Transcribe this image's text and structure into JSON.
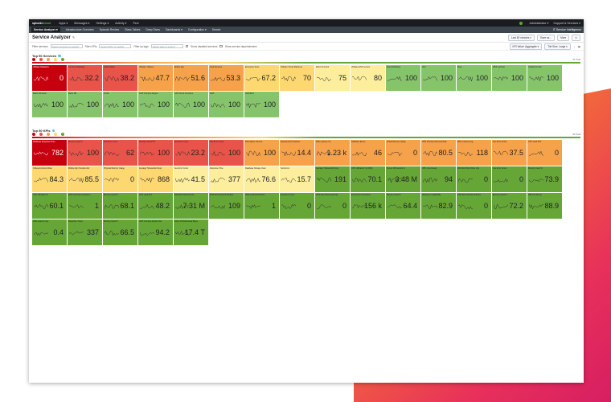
{
  "topbar": {
    "logo": "splunk>",
    "logo_suffix": "cloud",
    "menus": [
      "Apps ▾",
      "Messages ▾",
      "Settings ▾",
      "Activity ▾",
      "Find"
    ],
    "user": "Administrator ▾",
    "support": "Support & Services ▾"
  },
  "appbar": {
    "nav": [
      "Service Analyzer ▾",
      "Infrastructure Overview",
      "Episode Review",
      "Glass Tables",
      "Deep Dives",
      "Dashboards ▾",
      "Configuration ▾",
      "Search"
    ],
    "brand": "IT Service Intelligence"
  },
  "page": {
    "title": "Service Analyzer",
    "time_range": "Last 60 minutes ▾",
    "save": "Save as...",
    "more": "More"
  },
  "filters": {
    "filter_services_label": "Filter services",
    "filter_services_placeholder": "Select services or search",
    "filter_kpis_label": "Filter KPIs",
    "filter_kpis_placeholder": "Select KPIs or search",
    "filter_tags_label": "Filter by tags",
    "filter_tags_placeholder": "Select tags or search",
    "show_disabled": "Show disabled services",
    "show_dependencies": "Show service dependencies",
    "aggregate": "KPI Value: Aggregate ▾",
    "size": "Tile Size: Large ▾"
  },
  "services": {
    "title": "Top 50 Services",
    "count": "22 Total",
    "tiles": [
      {
        "name": "VMware Datastore",
        "value": "0",
        "sev": "critical"
      },
      {
        "name": "On-Prem Database",
        "value": "32.2",
        "sev": "high"
      },
      {
        "name": "Authorization",
        "value": "38.2",
        "sev": "high"
      },
      {
        "name": "VMware vSphere",
        "value": "47.7",
        "sev": "medium"
      },
      {
        "name": "Mobile App",
        "value": "51.6",
        "sev": "medium"
      },
      {
        "name": "Card Services",
        "value": "53.3",
        "sev": "medium"
      },
      {
        "name": "Enterprise Store",
        "value": "67.2",
        "sev": "low"
      },
      {
        "name": "VMware Virtual Machines",
        "value": "70",
        "sev": "low"
      },
      {
        "name": "Web Front End",
        "value": "75",
        "sev": "info-s"
      },
      {
        "name": "VMware ESXi servers",
        "value": "80",
        "sev": "info-s"
      },
      {
        "name": "Cloud Database",
        "value": "100",
        "sev": "normal2"
      },
      {
        "name": "SLO",
        "value": "100",
        "sev": "normal2"
      },
      {
        "name": "Store",
        "value": "100",
        "sev": "normal2"
      },
      {
        "name": "AWS Lambda",
        "value": "100",
        "sev": "normal2"
      },
      {
        "name": "Catalog Service",
        "value": "100",
        "sev": "normal2"
      },
      {
        "name": "Batch Schedule",
        "value": "100",
        "sev": "normal2"
      },
      {
        "name": "Batch RB",
        "value": "100",
        "sev": "normal2"
      },
      {
        "name": "Portal",
        "value": "100",
        "sev": "normal2"
      },
      {
        "name": "GCP Compute Engine",
        "value": "100",
        "sev": "normal2"
      },
      {
        "name": "GCP Cloud Functions",
        "value": "100",
        "sev": "normal2"
      },
      {
        "name": "AWS",
        "value": "100",
        "sev": "normal2"
      },
      {
        "name": "AWS EC2",
        "value": "100",
        "sev": "normal2"
      }
    ]
  },
  "kpis": {
    "title": "Top 50 KPIs",
    "count": "90 Total",
    "tiles": [
      {
        "name": "Database Response Time",
        "value": "782",
        "sev": "critical"
      },
      {
        "name": "Memory Used %",
        "value": "100",
        "sev": "high"
      },
      {
        "name": "Sev Error Count",
        "value": "62",
        "sev": "high"
      },
      {
        "name": "Storage Used PCT",
        "value": "100",
        "sev": "high"
      },
      {
        "name": "Sev Error Count",
        "value": "23.2",
        "sev": "high"
      },
      {
        "name": "Sev Error Count",
        "value": "100",
        "sev": "high"
      },
      {
        "name": "Disk Space Used %",
        "value": "100",
        "sev": "medium"
      },
      {
        "name": "Network Error Packets",
        "value": "14.4",
        "sev": "medium"
      },
      {
        "name": "Write Latency ms",
        "value": "1.23 k",
        "sev": "medium"
      },
      {
        "name": "Database Errors",
        "value": "46",
        "sev": "medium"
      },
      {
        "name": "Virtual Memory Usage",
        "value": "0",
        "sev": "medium"
      },
      {
        "name": "VMS Checked Success Rate",
        "value": "80.5",
        "sev": "medium"
      },
      {
        "name": "Write Latency Avg",
        "value": "118",
        "sev": "medium"
      },
      {
        "name": "Sev Error Count",
        "value": "37.5",
        "sev": "medium"
      },
      {
        "name": "CPU Load PCT",
        "value": "0",
        "sev": "medium"
      },
      {
        "name": "Ordered Account Rate",
        "value": "84.3",
        "sev": "low"
      },
      {
        "name": "Mobile App Checkout Err",
        "value": "85.5",
        "sev": "low"
      },
      {
        "name": "Physical Memory Usage",
        "value": "0",
        "sev": "low"
      },
      {
        "name": "Average Transaction Resp",
        "value": "868",
        "sev": "low"
      },
      {
        "name": "Sev Error Count",
        "value": "41.5",
        "sev": "info-s"
      },
      {
        "name": "Response Time",
        "value": "377",
        "sev": "info-s"
      },
      {
        "name": "Database Storage Used",
        "value": "76.6",
        "sev": "info-s"
      },
      {
        "name": "Net Errors",
        "value": "15.7",
        "sev": "info-s"
      },
      {
        "name": "Average Transaction Resp",
        "value": "191",
        "sev": "normal"
      },
      {
        "name": "CPU Utilization % (AWS)",
        "value": "70.1",
        "sev": "normal"
      },
      {
        "name": "Server Mil Network In",
        "value": "3.48 M",
        "sev": "normal"
      },
      {
        "name": "CPU Core Ready",
        "value": "94",
        "sev": "normal"
      },
      {
        "name": "AWS EC2 Disk Write Ops",
        "value": "0",
        "sev": "normal"
      },
      {
        "name": "Sev Error Count",
        "value": "0",
        "sev": "normal"
      },
      {
        "name": "Memory Used %",
        "value": "73.9",
        "sev": "normal"
      },
      {
        "name": "CPU Utilization %",
        "value": "60.1",
        "sev": "normal"
      },
      {
        "name": "AWS Lambda Invocations",
        "value": "1",
        "sev": "normal"
      },
      {
        "name": "Memory Used %",
        "value": "68.1",
        "sev": "normal"
      },
      {
        "name": "CPU Load PCT",
        "value": "48.2",
        "sev": "normal"
      },
      {
        "name": "AWS EC2 Network Out",
        "value": "7.31 M",
        "sev": "normal"
      },
      {
        "name": "AWS EC2 Network Packets",
        "value": "109",
        "sev": "normal"
      },
      {
        "name": "AWS Lambda Duration",
        "value": "1",
        "sev": "normal"
      },
      {
        "name": "Sev Error Count",
        "value": "0",
        "sev": "normal"
      },
      {
        "name": "AWS EC2 Disk Read Ops",
        "value": "0",
        "sev": "normal"
      },
      {
        "name": "Ecosystem Checkouts",
        "value": "156 k",
        "sev": "normal"
      },
      {
        "name": "Memory Used %",
        "value": "64.4",
        "sev": "normal"
      },
      {
        "name": "Webserver Availability",
        "value": "82.9",
        "sev": "normal"
      },
      {
        "name": "AWS EC2 Disk Read Bytes",
        "value": "0",
        "sev": "normal"
      },
      {
        "name": "Memory Used %",
        "value": "72.2",
        "sev": "normal"
      },
      {
        "name": "HBL Per Minute",
        "value": "88.9",
        "sev": "normal"
      },
      {
        "name": "Write Latency Avg",
        "value": "0.4",
        "sev": "normal"
      },
      {
        "name": "Response Times",
        "value": "337",
        "sev": "normal"
      },
      {
        "name": "Memory Used %",
        "value": "66.5",
        "sev": "normal"
      },
      {
        "name": "GCP Compute Engine Net",
        "value": "94.2",
        "sev": "normal"
      },
      {
        "name": "Azure VM Disk Read Bytes",
        "value": "17.4 T",
        "sev": "normal"
      }
    ]
  },
  "colors": {
    "critical": "#c7000f",
    "high": "#e8534a",
    "medium": "#f5a24a",
    "low": "#fdd870",
    "normal": "#65a637"
  }
}
